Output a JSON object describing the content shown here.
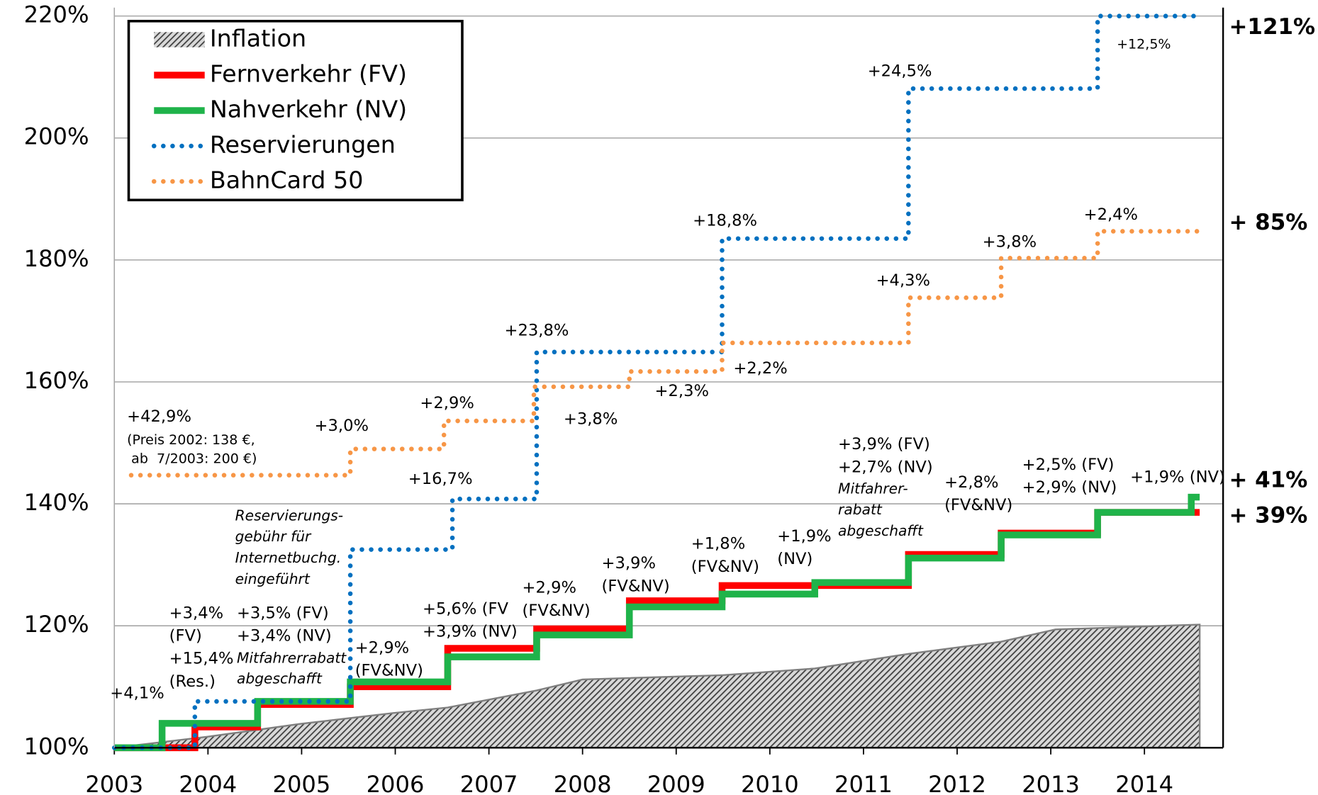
{
  "chart_data": {
    "type": "step",
    "xlim": [
      2003,
      2014.84
    ],
    "xticks": [
      2003,
      2004,
      2005,
      2006,
      2007,
      2008,
      2009,
      2010,
      2011,
      2012,
      2013,
      2014
    ],
    "ylim": [
      100,
      220
    ],
    "yticks": [
      {
        "value": 100,
        "label": "100%"
      },
      {
        "value": 120,
        "label": "120%"
      },
      {
        "value": 140,
        "label": "140%"
      },
      {
        "value": 160,
        "label": "160%"
      },
      {
        "value": 180,
        "label": "180%"
      },
      {
        "value": 200,
        "label": "200%"
      },
      {
        "value": 220,
        "label": "220%"
      }
    ],
    "grid": true,
    "legend": "top-left",
    "series": [
      {
        "name": "Inflation",
        "kind": "area",
        "color": "#7f7f7f",
        "x": [
          2003,
          2003.99,
          2004.98,
          2005.98,
          2006.56,
          2007.51,
          2008.0,
          2009.49,
          2010.48,
          2011.48,
          2012.47,
          2013.05,
          2014.59
        ],
        "values": [
          100,
          101.8,
          103.9,
          105.7,
          106.6,
          109.4,
          111.2,
          111.9,
          113,
          115.4,
          117.4,
          119.4,
          120.2
        ]
      },
      {
        "name": "Fernverkehr (FV)",
        "kind": "solid",
        "color": "#ff0000",
        "x": [
          2003,
          2003.86,
          2003.86,
          2004.53,
          2004.53,
          2005.52,
          2005.52,
          2006.56,
          2006.56,
          2007.51,
          2007.51,
          2008.5,
          2008.5,
          2009.49,
          2009.49,
          2011.48,
          2011.48,
          2012.47,
          2012.47,
          2013.5,
          2013.5,
          2014.59
        ],
        "values": [
          100,
          100,
          103.4,
          103.4,
          107.1,
          107.1,
          110,
          110,
          116.3,
          116.3,
          119.5,
          119.5,
          124.1,
          124.1,
          126.6,
          126.6,
          131.7,
          131.7,
          135.2,
          135.2,
          138.6,
          138.6
        ]
      },
      {
        "name": "Nahverkehr (NV)",
        "kind": "solid",
        "color": "#1fb34a",
        "x": [
          2003,
          2003.51,
          2003.51,
          2004.53,
          2004.53,
          2005.52,
          2005.52,
          2006.56,
          2006.56,
          2007.51,
          2007.51,
          2008.5,
          2008.5,
          2009.49,
          2009.49,
          2010.48,
          2010.48,
          2011.48,
          2011.48,
          2012.47,
          2012.47,
          2013.5,
          2013.5,
          2014.5,
          2014.5,
          2014.59
        ],
        "values": [
          100,
          100,
          104,
          104,
          107.6,
          107.6,
          110.8,
          110.8,
          114.9,
          114.9,
          118.5,
          118.5,
          123.1,
          123.1,
          125.2,
          125.2,
          127.1,
          127.1,
          131.1,
          131.1,
          134.9,
          134.9,
          138.6,
          138.6,
          141.1,
          141.1
        ]
      },
      {
        "name": "Reservierungen",
        "kind": "dotted",
        "color": "#0070c0",
        "x": [
          2003,
          2003.86,
          2003.86,
          2005.52,
          2005.52,
          2006.61,
          2006.61,
          2007.51,
          2007.51,
          2009.49,
          2009.49,
          2011.48,
          2011.48,
          2013.5,
          2013.5,
          2014.59
        ],
        "values": [
          100,
          100,
          107.6,
          107.6,
          132.5,
          132.5,
          140.8,
          140.8,
          164.9,
          164.9,
          183.5,
          183.5,
          208.1,
          208.1,
          220,
          220
        ]
      },
      {
        "name": "BahnCard 50",
        "kind": "dotted",
        "color": "#f79646",
        "x": [
          2003.18,
          2005.52,
          2005.52,
          2006.52,
          2006.52,
          2007.48,
          2007.48,
          2008.5,
          2008.5,
          2009.49,
          2009.49,
          2011.48,
          2011.48,
          2012.47,
          2012.47,
          2013.5,
          2013.5,
          2014.59
        ],
        "values": [
          144.7,
          144.7,
          149,
          149,
          153.6,
          153.6,
          159.2,
          159.2,
          161.7,
          161.7,
          166.4,
          166.4,
          173.8,
          173.8,
          180.3,
          180.3,
          184.7,
          184.7
        ]
      }
    ],
    "end_labels": [
      "+121%",
      "+ 85%",
      "+ 41%",
      "+ 39%"
    ],
    "annotations": [
      [
        "+4,1%"
      ],
      [
        "+3,4%",
        "(FV)",
        "+15,4%",
        "(Res.)"
      ],
      [
        "+3,5% (FV)",
        "+3,4% (NV)"
      ],
      [
        "Mitfahrerrabatt",
        "abgeschafft"
      ],
      [
        "+2,9%",
        "(FV&NV)"
      ],
      [
        "+5,6% (FV",
        "+3,9% (NV)"
      ],
      [
        "+2,9%",
        "(FV&NV)"
      ],
      [
        "+3,9%",
        "(FV&NV)"
      ],
      [
        "+1,8%",
        "(FV&NV)"
      ],
      [
        "+1,9%",
        "(NV)"
      ],
      [
        "+3,9% (FV)",
        "+2,7% (NV)"
      ],
      [
        "Mitfahrer-",
        "rabatt",
        "abgeschafft"
      ],
      [
        "+2,8%",
        "(FV&NV)"
      ],
      [
        "+2,5% (FV)",
        "+2,9% (NV)"
      ],
      [
        "+1,9% (NV)"
      ],
      [
        "Reservierungs-",
        "gebühr für",
        "Internetbuchg.",
        "eingeführt"
      ],
      [
        "+16,7%"
      ],
      [
        "+23,8%"
      ],
      [
        "+18,8%"
      ],
      [
        "+24,5%"
      ],
      [
        "+12,5%"
      ],
      [
        "+42,9%"
      ],
      [
        "(Preis 2002: 138 €,",
        " ab  7/2003: 200 €)"
      ],
      [
        "+3,0%"
      ],
      [
        "+2,9%"
      ],
      [
        "+3,8%"
      ],
      [
        "+2,3%"
      ],
      [
        "+2,2%"
      ],
      [
        "+4,3%"
      ],
      [
        "+3,8%"
      ],
      [
        "+2,4%"
      ]
    ]
  }
}
